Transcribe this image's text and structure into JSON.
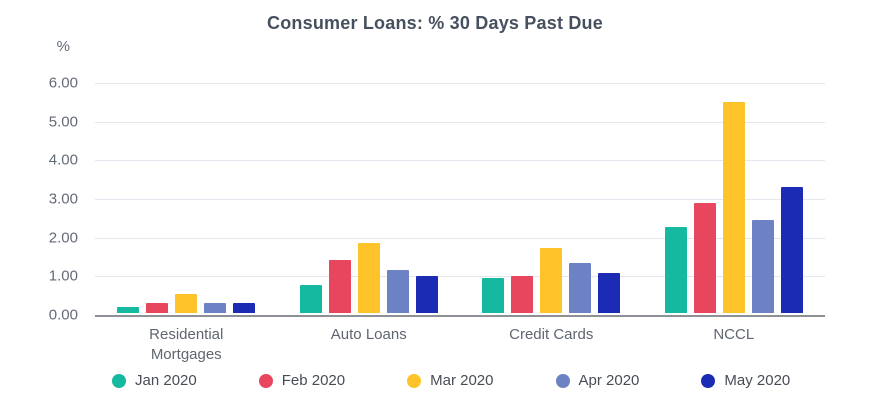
{
  "title": "Consumer Loans: % 30 Days Past Due",
  "y_axis": {
    "unit_label": "%",
    "ticks": [
      "6.00",
      "5.00",
      "4.00",
      "3.00",
      "2.00",
      "1.00",
      "0.00"
    ]
  },
  "colors": {
    "background": "#ffffff",
    "title_text": "#47505f",
    "axis_text": "#636b77",
    "x_label_text": "#5f6670",
    "legend_text": "#474d57",
    "gridline": "#e4e8ee",
    "baseline": "#8d9196"
  },
  "chart_data": {
    "type": "bar",
    "title": "Consumer Loans: % 30 Days Past Due",
    "categories": [
      "Residential Mortgages",
      "Auto Loans",
      "Credit Cards",
      "NCCL"
    ],
    "series": [
      {
        "name": "Jan 2020",
        "color": "#14b9a0",
        "values": [
          0.16,
          0.73,
          0.9,
          2.22
        ]
      },
      {
        "name": "Feb 2020",
        "color": "#e8465f",
        "values": [
          0.25,
          1.38,
          0.95,
          2.84
        ]
      },
      {
        "name": "Mar 2020",
        "color": "#fdc328",
        "values": [
          0.48,
          1.8,
          1.67,
          5.45
        ]
      },
      {
        "name": "Apr 2020",
        "color": "#6c82c4",
        "values": [
          0.27,
          1.1,
          1.3,
          2.41
        ]
      },
      {
        "name": "May 2020",
        "color": "#1b2bb4",
        "values": [
          0.25,
          0.95,
          1.03,
          3.27
        ]
      }
    ],
    "xlabel": "",
    "ylabel": "%",
    "ylim": [
      0,
      6
    ],
    "grid": true,
    "legend_position": "bottom"
  }
}
